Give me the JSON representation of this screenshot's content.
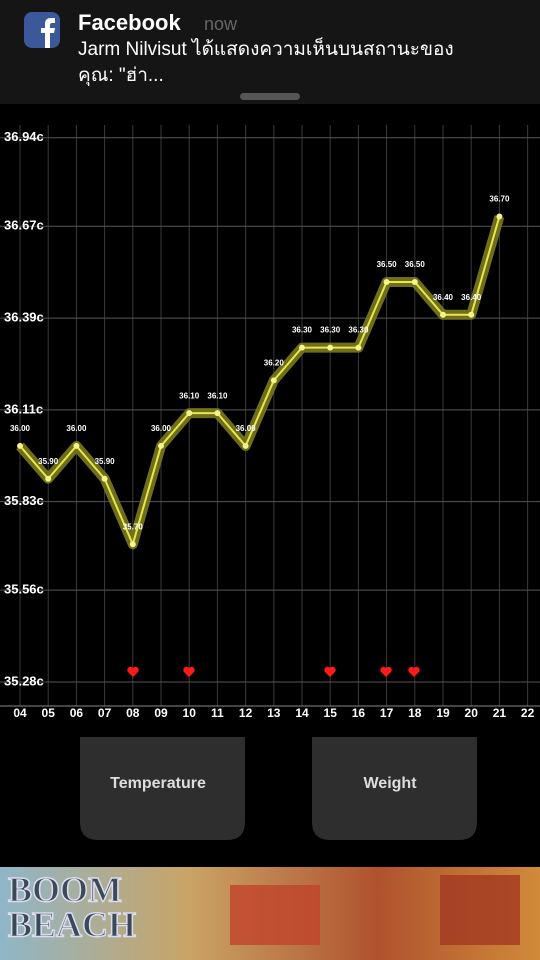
{
  "notification": {
    "app": "Facebook",
    "time": "now",
    "line1": "Jarm Nilvisut ได้แสดงความเห็นบนสถานะของ",
    "line2": "คุณ: \"ฮ่า..."
  },
  "chart_data": {
    "type": "line",
    "categories": [
      "04",
      "05",
      "06",
      "07",
      "08",
      "09",
      "10",
      "11",
      "12",
      "13",
      "14",
      "15",
      "16",
      "17",
      "18",
      "19",
      "20",
      "21",
      "22"
    ],
    "values": [
      36.0,
      35.9,
      36.0,
      35.9,
      35.7,
      36.0,
      36.1,
      36.1,
      36.0,
      36.2,
      36.3,
      36.3,
      36.3,
      36.5,
      36.5,
      36.4,
      36.4,
      36.7,
      null
    ],
    "value_labels": [
      "36.00",
      "35.90",
      "36.00",
      "35.90",
      "35.70",
      "36.00",
      "36.10",
      "36.10",
      "36.00",
      "36.20",
      "36.30",
      "36.30",
      "36.30",
      "36.50",
      "36.50",
      "36.40",
      "36.40",
      "36.70",
      null
    ],
    "color": "#e8e84a",
    "ylim": [
      35.225,
      37.04
    ],
    "yticks": [
      {
        "value": 36.94,
        "label": "36.94c"
      },
      {
        "value": 36.67,
        "label": "36.67c"
      },
      {
        "value": 36.39,
        "label": "36.39c"
      },
      {
        "value": 36.11,
        "label": "36.11c"
      },
      {
        "value": 35.83,
        "label": "35.83c"
      },
      {
        "value": 35.56,
        "label": "35.56c"
      },
      {
        "value": 35.28,
        "label": "35.28c"
      }
    ],
    "grid": true
  },
  "buttons": [
    "Temperature",
    "Weight"
  ],
  "ad": {
    "line1": "BOOM",
    "line2": "BEACH"
  }
}
